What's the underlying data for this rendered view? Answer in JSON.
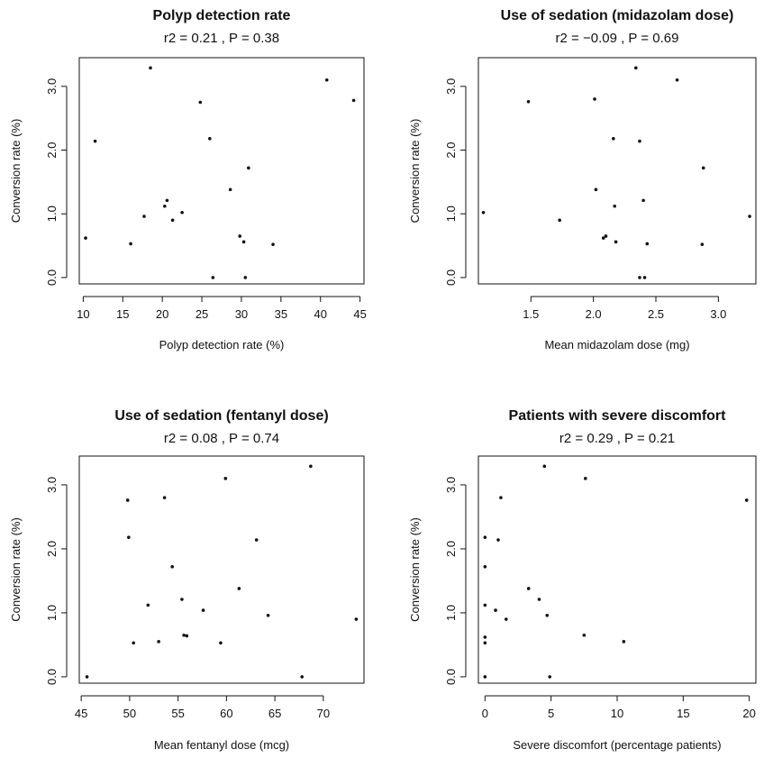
{
  "chart_data": [
    {
      "type": "scatter",
      "title": "Polyp detection rate",
      "subtitle": "r2 = 0.21 ,  P = 0.38",
      "xlabel": "Polyp detection rate (%)",
      "ylabel": "Conversion rate (%)",
      "xlim": [
        9.5,
        45.5
      ],
      "ylim": [
        -0.1,
        3.45
      ],
      "xticks": [
        10,
        15,
        20,
        25,
        30,
        35,
        40,
        45
      ],
      "xtick_labels": [
        "10",
        "15",
        "20",
        "25",
        "30",
        "35",
        "40",
        "45"
      ],
      "yticks": [
        0,
        1,
        2,
        3
      ],
      "ytick_labels": [
        "0.0",
        "1.0",
        "2.0",
        "3.0"
      ],
      "grid": false,
      "points": [
        {
          "x": 10.3,
          "y": 0.62
        },
        {
          "x": 11.5,
          "y": 2.14
        },
        {
          "x": 16.0,
          "y": 0.53
        },
        {
          "x": 17.7,
          "y": 0.96
        },
        {
          "x": 18.5,
          "y": 3.29
        },
        {
          "x": 20.3,
          "y": 1.12
        },
        {
          "x": 20.6,
          "y": 1.21
        },
        {
          "x": 21.3,
          "y": 0.9
        },
        {
          "x": 22.5,
          "y": 1.02
        },
        {
          "x": 24.8,
          "y": 2.75
        },
        {
          "x": 26.0,
          "y": 2.18
        },
        {
          "x": 26.4,
          "y": 0.0
        },
        {
          "x": 28.6,
          "y": 1.38
        },
        {
          "x": 29.8,
          "y": 0.65
        },
        {
          "x": 30.3,
          "y": 0.56
        },
        {
          "x": 30.5,
          "y": 0.0
        },
        {
          "x": 30.9,
          "y": 1.72
        },
        {
          "x": 34.0,
          "y": 0.52
        },
        {
          "x": 40.8,
          "y": 3.1
        },
        {
          "x": 44.2,
          "y": 2.78
        }
      ]
    },
    {
      "type": "scatter",
      "title": "Use of sedation (midazolam dose)",
      "subtitle": "r2 = −0.09 ,  P = 0.69",
      "xlabel": "Mean midazolam dose (mg)",
      "ylabel": "Conversion rate (%)",
      "xlim": [
        1.08,
        3.3
      ],
      "ylim": [
        -0.1,
        3.45
      ],
      "xticks": [
        1.5,
        2.0,
        2.5,
        3.0
      ],
      "xtick_labels": [
        "1.5",
        "2.0",
        "2.5",
        "3.0"
      ],
      "yticks": [
        0,
        1,
        2,
        3
      ],
      "ytick_labels": [
        "0.0",
        "1.0",
        "2.0",
        "3.0"
      ],
      "grid": false,
      "points": [
        {
          "x": 1.12,
          "y": 1.02
        },
        {
          "x": 1.48,
          "y": 2.76
        },
        {
          "x": 1.73,
          "y": 0.9
        },
        {
          "x": 2.01,
          "y": 2.8
        },
        {
          "x": 2.02,
          "y": 1.38
        },
        {
          "x": 2.08,
          "y": 0.62
        },
        {
          "x": 2.1,
          "y": 0.65
        },
        {
          "x": 2.16,
          "y": 2.18
        },
        {
          "x": 2.17,
          "y": 1.12
        },
        {
          "x": 2.18,
          "y": 0.56
        },
        {
          "x": 2.34,
          "y": 3.29
        },
        {
          "x": 2.37,
          "y": 2.14
        },
        {
          "x": 2.37,
          "y": 0.0
        },
        {
          "x": 2.4,
          "y": 1.21
        },
        {
          "x": 2.41,
          "y": 0.0
        },
        {
          "x": 2.43,
          "y": 0.53
        },
        {
          "x": 2.67,
          "y": 3.1
        },
        {
          "x": 2.87,
          "y": 0.52
        },
        {
          "x": 2.88,
          "y": 1.72
        },
        {
          "x": 3.25,
          "y": 0.96
        }
      ]
    },
    {
      "type": "scatter",
      "title": "Use of sedation (fentanyl dose)",
      "subtitle": "r2 = 0.08 ,  P = 0.74",
      "xlabel": "Mean fentanyl dose (mcg)",
      "ylabel": "Conversion rate (%)",
      "xlim": [
        44.8,
        74.2
      ],
      "ylim": [
        -0.1,
        3.45
      ],
      "xticks": [
        45,
        50,
        55,
        60,
        65,
        70
      ],
      "xtick_labels": [
        "45",
        "50",
        "55",
        "60",
        "65",
        "70"
      ],
      "yticks": [
        0,
        1,
        2,
        3
      ],
      "ytick_labels": [
        "0.0",
        "1.0",
        "2.0",
        "3.0"
      ],
      "grid": false,
      "points": [
        {
          "x": 45.6,
          "y": 0.0
        },
        {
          "x": 49.8,
          "y": 2.76
        },
        {
          "x": 49.9,
          "y": 2.18
        },
        {
          "x": 50.4,
          "y": 0.53
        },
        {
          "x": 51.9,
          "y": 1.12
        },
        {
          "x": 53.0,
          "y": 0.55
        },
        {
          "x": 53.6,
          "y": 2.8
        },
        {
          "x": 54.4,
          "y": 1.72
        },
        {
          "x": 55.4,
          "y": 1.21
        },
        {
          "x": 55.6,
          "y": 0.65
        },
        {
          "x": 55.9,
          "y": 0.64
        },
        {
          "x": 57.6,
          "y": 1.04
        },
        {
          "x": 59.4,
          "y": 0.53
        },
        {
          "x": 59.9,
          "y": 3.1
        },
        {
          "x": 61.3,
          "y": 1.38
        },
        {
          "x": 63.1,
          "y": 2.14
        },
        {
          "x": 64.3,
          "y": 0.96
        },
        {
          "x": 67.8,
          "y": 0.0
        },
        {
          "x": 68.7,
          "y": 3.29
        },
        {
          "x": 73.4,
          "y": 0.9
        }
      ]
    },
    {
      "type": "scatter",
      "title": "Patients with severe discomfort",
      "subtitle": "r2 = 0.29 ,  P = 0.21",
      "xlabel": "Severe discomfort (percentage patients)",
      "ylabel": "Conversion rate (%)",
      "xlim": [
        -0.5,
        20.5
      ],
      "ylim": [
        -0.1,
        3.45
      ],
      "xticks": [
        0,
        5,
        10,
        15,
        20
      ],
      "xtick_labels": [
        "0",
        "5",
        "10",
        "15",
        "20"
      ],
      "yticks": [
        0,
        1,
        2,
        3
      ],
      "ytick_labels": [
        "0.0",
        "1.0",
        "2.0",
        "3.0"
      ],
      "grid": false,
      "points": [
        {
          "x": 0.0,
          "y": 2.18
        },
        {
          "x": 0.0,
          "y": 1.72
        },
        {
          "x": 0.0,
          "y": 1.12
        },
        {
          "x": 0.0,
          "y": 0.62
        },
        {
          "x": 0.0,
          "y": 0.53
        },
        {
          "x": 0.0,
          "y": 0.0
        },
        {
          "x": 0.8,
          "y": 1.04
        },
        {
          "x": 1.0,
          "y": 2.14
        },
        {
          "x": 1.2,
          "y": 2.8
        },
        {
          "x": 1.6,
          "y": 0.9
        },
        {
          "x": 3.3,
          "y": 1.38
        },
        {
          "x": 4.1,
          "y": 1.21
        },
        {
          "x": 4.5,
          "y": 3.29
        },
        {
          "x": 4.7,
          "y": 0.96
        },
        {
          "x": 4.9,
          "y": 0.0
        },
        {
          "x": 7.5,
          "y": 0.65
        },
        {
          "x": 7.6,
          "y": 3.1
        },
        {
          "x": 10.5,
          "y": 0.55
        },
        {
          "x": 19.8,
          "y": 2.76
        }
      ]
    }
  ]
}
